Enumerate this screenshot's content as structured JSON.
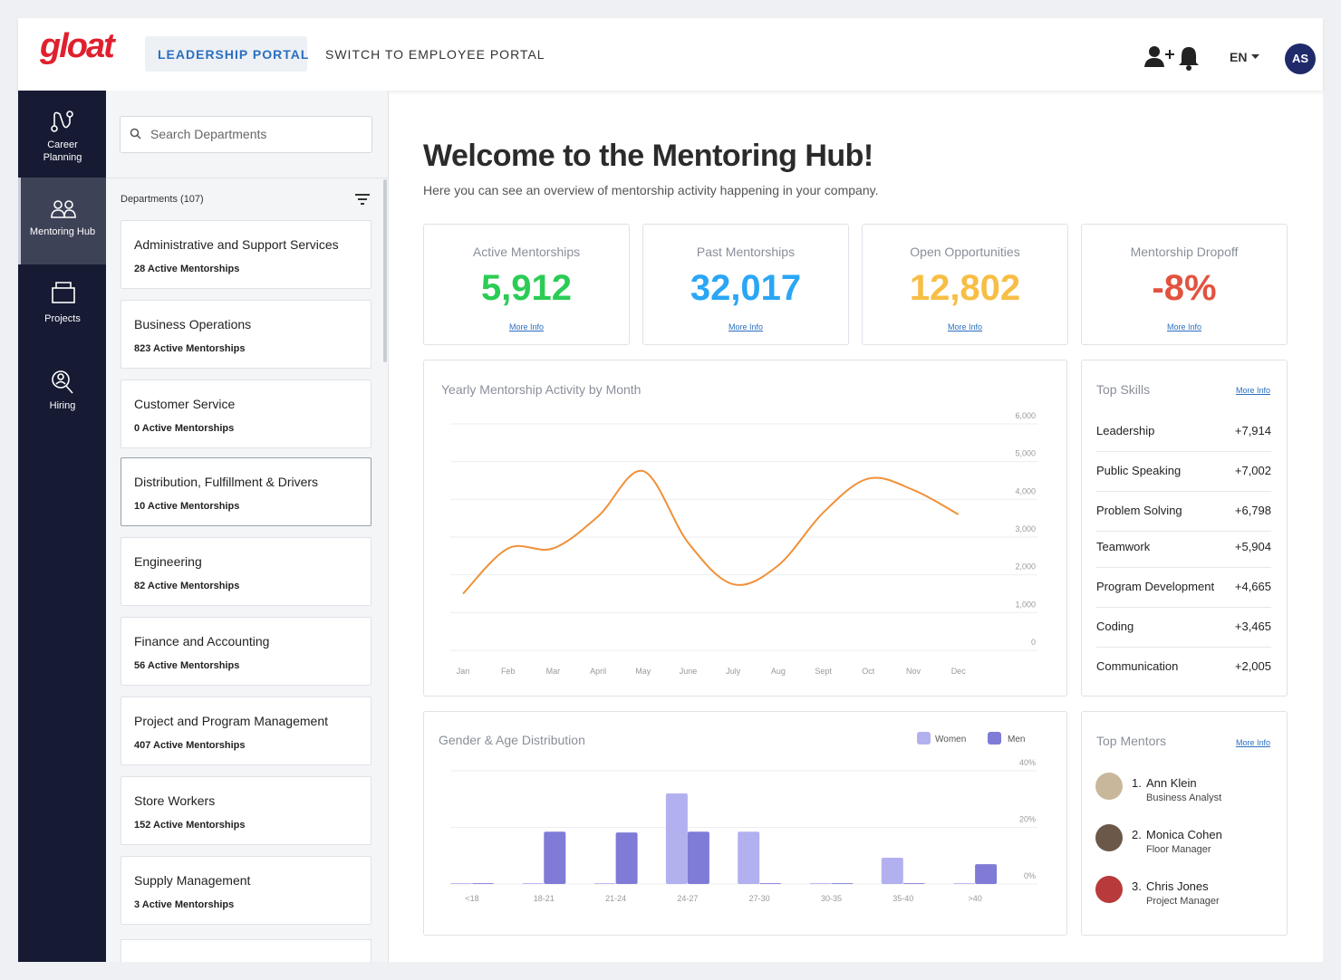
{
  "header": {
    "logo": "gloat",
    "tabs": [
      "LEADERSHIP PORTAL",
      "SWITCH TO EMPLOYEE PORTAL"
    ],
    "language": "EN",
    "avatar": "AS"
  },
  "nav": [
    "Career Planning",
    "Mentoring Hub",
    "Projects",
    "Hiring"
  ],
  "departments": {
    "search_placeholder": "Search Departments",
    "heading": "Departments (107)",
    "items": [
      {
        "name": "Administrative and Support Services",
        "count": "28 Active Mentorships"
      },
      {
        "name": "Business Operations",
        "count": "823 Active Mentorships"
      },
      {
        "name": "Customer Service",
        "count": "0 Active Mentorships"
      },
      {
        "name": "Distribution, Fulfillment & Drivers",
        "count": "10 Active Mentorships"
      },
      {
        "name": "Engineering",
        "count": "82 Active Mentorships"
      },
      {
        "name": "Finance and Accounting",
        "count": "56 Active Mentorships"
      },
      {
        "name": "Project and Program Management",
        "count": "407 Active Mentorships"
      },
      {
        "name": "Store Workers",
        "count": "152 Active Mentorships"
      },
      {
        "name": "Supply Management",
        "count": "3 Active Mentorships"
      }
    ]
  },
  "welcome": {
    "title": "Welcome to the Mentoring Hub!",
    "subtitle": "Here you can see an overview of mentorship activity happening in your company."
  },
  "stats": [
    {
      "label": "Active Mentorships",
      "value": "5,912",
      "color": "#2bcc55",
      "link": "More Info"
    },
    {
      "label": "Past Mentorships",
      "value": "32,017",
      "color": "#2aa6f5",
      "link": "More Info"
    },
    {
      "label": "Open Opportunities",
      "value": "12,802",
      "color": "#f7be45",
      "link": "More Info"
    },
    {
      "label": "Mentorship Dropoff",
      "value": "-8%",
      "color": "#e2533f",
      "link": "More Info"
    }
  ],
  "top_skills": {
    "title": "Top Skills",
    "link": "More Info",
    "items": [
      {
        "name": "Leadership",
        "value": "+7,914"
      },
      {
        "name": "Public Speaking",
        "value": "+7,002"
      },
      {
        "name": "Problem Solving",
        "value": "+6,798"
      },
      {
        "name": "Teamwork",
        "value": "+5,904"
      },
      {
        "name": "Program Development",
        "value": "+4,665"
      },
      {
        "name": "Coding",
        "value": "+3,465"
      },
      {
        "name": "Communication",
        "value": "+2,005"
      }
    ]
  },
  "top_mentors": {
    "title": "Top Mentors",
    "link": "More Info",
    "items": [
      {
        "rank": "1.",
        "name": "Ann Klein",
        "role": "Business Analyst"
      },
      {
        "rank": "2.",
        "name": "Monica Cohen",
        "role": "Floor Manager"
      },
      {
        "rank": "3.",
        "name": "Chris Jones",
        "role": "Project Manager"
      }
    ]
  },
  "chart_data": [
    {
      "type": "line",
      "title": "Yearly Mentorship Activity by Month",
      "categories": [
        "Jan",
        "Feb",
        "Mar",
        "April",
        "May",
        "June",
        "July",
        "Aug",
        "Sept",
        "Oct",
        "Nov",
        "Dec"
      ],
      "values": [
        1500,
        2700,
        2700,
        3550,
        4750,
        2850,
        1750,
        2250,
        3650,
        4550,
        4250,
        3600
      ],
      "color": "#f0913a",
      "ylim": [
        0,
        6000
      ],
      "yticks": [
        0,
        {
          "value": 1000,
          "label": "1,000"
        },
        {
          "value": 2000,
          "label": "2,000"
        },
        {
          "value": 3000,
          "label": "3,000"
        },
        {
          "value": 4000,
          "label": "4,000"
        },
        {
          "value": 5000,
          "label": "5,000"
        },
        {
          "value": 6000,
          "label": "6,000"
        }
      ],
      "grid": true
    },
    {
      "type": "bar",
      "title": "Gender & Age Distribution",
      "categories": [
        "<18",
        "18-21",
        "21-24",
        "24-27",
        "27-30",
        "30-35",
        "35-40",
        ">40"
      ],
      "series": [
        {
          "name": "Women",
          "color": "#b3b0f0",
          "values": [
            0.3,
            0.3,
            0.3,
            32,
            18.5,
            0.3,
            9.3,
            0.3
          ]
        },
        {
          "name": "Men",
          "color": "#7f7bd6",
          "values": [
            0.3,
            18.5,
            18.2,
            18.5,
            0.3,
            0.3,
            0.3,
            7
          ]
        }
      ],
      "ylim": [
        0,
        40
      ],
      "yticks": [
        {
          "value": 0,
          "label": "0%"
        },
        {
          "value": 20,
          "label": "20%"
        },
        {
          "value": 40,
          "label": "40%"
        }
      ],
      "grid": true,
      "legend": "top-right"
    }
  ]
}
